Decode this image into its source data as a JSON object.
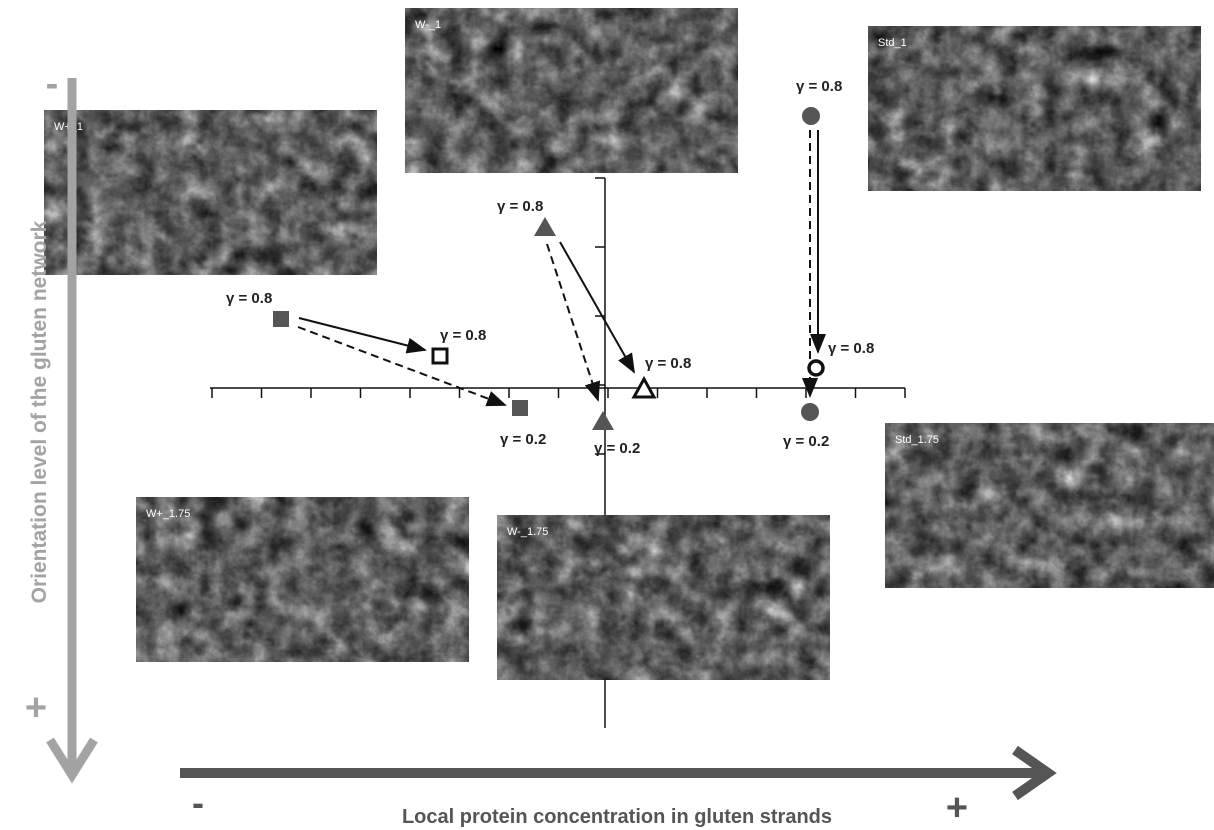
{
  "axes": {
    "x_title": "Local protein concentration in gluten strands",
    "x_minus": "-",
    "x_plus": "+",
    "y_title": "Orientation level of the gluten network",
    "y_minus": "-",
    "y_plus": "+"
  },
  "images": [
    {
      "label": "W-_1"
    },
    {
      "label": "Std_1"
    },
    {
      "label": "W+_1"
    },
    {
      "label": "Std_1.75"
    },
    {
      "label": "W+_1.75"
    },
    {
      "label": "W-_1.75"
    }
  ],
  "annotations": [
    "γ = 0.8",
    "γ = 0.8",
    "γ = 0.2",
    "γ = 0.8",
    "γ = 0.8",
    "γ = 0.2",
    "γ = 0.8",
    "γ = 0.8",
    "γ = 0.2"
  ]
}
